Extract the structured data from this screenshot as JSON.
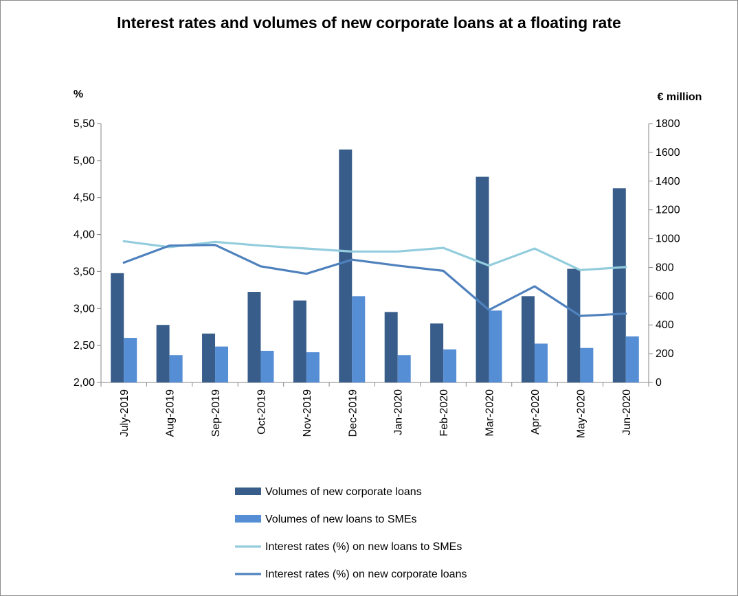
{
  "chart_data": {
    "type": "bar",
    "title": "Interest rates and volumes of new corporate loans at a floating rate",
    "categories": [
      "July-2019",
      "Aug-2019",
      "Sep-2019",
      "Oct-2019",
      "Nov-2019",
      "Dec-2019",
      "Jan-2020",
      "Feb-2020",
      "Mar-2020",
      "Apr-2020",
      "May-2020",
      "Jun-2020"
    ],
    "left_axis": {
      "label": "%",
      "range": [
        2.0,
        5.5
      ],
      "ticks": [
        "2,00",
        "2,50",
        "3,00",
        "3,50",
        "4,00",
        "4,50",
        "5,00",
        "5,50"
      ]
    },
    "right_axis": {
      "label": "€ million",
      "range": [
        0,
        1800
      ],
      "ticks": [
        "0",
        "200",
        "400",
        "600",
        "800",
        "1000",
        "1200",
        "1400",
        "1600",
        "1800"
      ]
    },
    "gridlines": false,
    "legend_position": "bottom",
    "series": [
      {
        "name": "Volumes of new corporate loans",
        "type": "bar",
        "axis": "right",
        "color": "#385d8a",
        "values": [
          760,
          400,
          340,
          630,
          570,
          1620,
          490,
          410,
          1430,
          600,
          790,
          1350
        ]
      },
      {
        "name": "Volumes of new loans to SMEs",
        "type": "bar",
        "axis": "right",
        "color": "#558ed5",
        "values": [
          310,
          190,
          250,
          220,
          210,
          600,
          190,
          230,
          500,
          270,
          240,
          320
        ]
      },
      {
        "name": "Interest rates (%) on new loans to SMEs",
        "type": "line",
        "axis": "left",
        "color": "#93cddd",
        "values": [
          3.91,
          3.83,
          3.9,
          3.85,
          3.81,
          3.77,
          3.77,
          3.82,
          3.58,
          3.81,
          3.52,
          3.56
        ]
      },
      {
        "name": "Interest rates (%) on new corporate loans",
        "type": "line",
        "axis": "left",
        "color": "#4f81bd",
        "values": [
          3.62,
          3.85,
          3.86,
          3.57,
          3.47,
          3.66,
          3.58,
          3.51,
          2.98,
          3.3,
          2.9,
          2.93
        ]
      }
    ]
  }
}
